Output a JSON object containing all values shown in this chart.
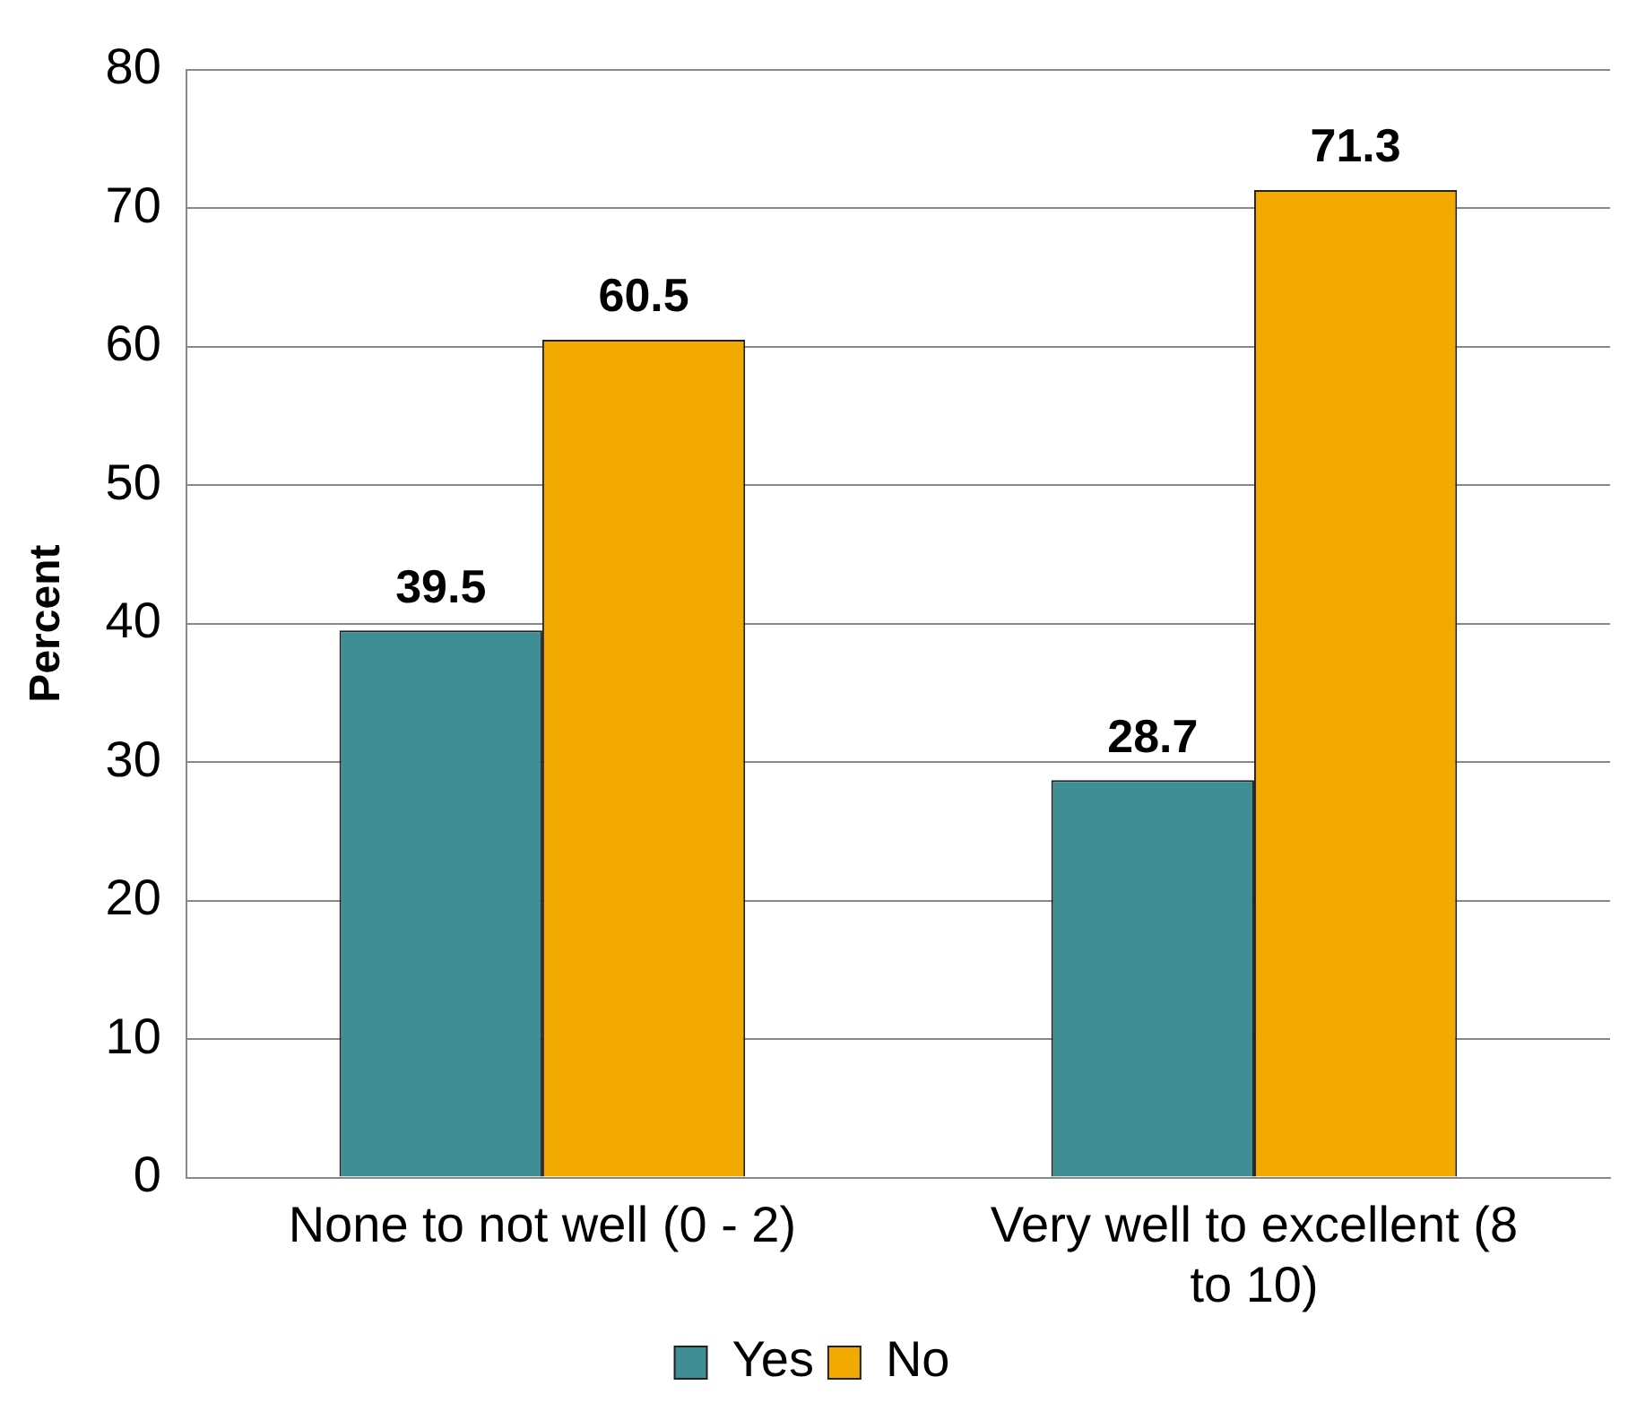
{
  "chart_data": {
    "type": "bar",
    "ylabel": "Percent",
    "categories": [
      "None to not well (0 - 2)",
      "Very well to excellent (8 to 10)"
    ],
    "series": [
      {
        "name": "Yes",
        "color": "#3f8e96",
        "values": [
          39.5,
          28.7
        ]
      },
      {
        "name": "No",
        "color": "#f2a900",
        "values": [
          60.5,
          71.3
        ]
      }
    ],
    "ylim": [
      0,
      80
    ],
    "yticks": [
      0,
      10,
      20,
      30,
      40,
      50,
      60,
      70,
      80
    ],
    "grid": "y",
    "legend": "bottom",
    "data_labels": true
  }
}
